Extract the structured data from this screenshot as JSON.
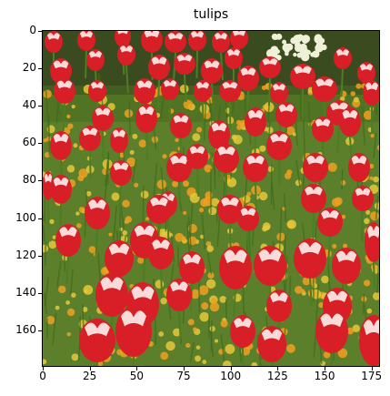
{
  "title": "tulips",
  "axes": {
    "xticks": [
      "0",
      "25",
      "50",
      "75",
      "100",
      "125",
      "150",
      "175"
    ],
    "yticks": [
      "0",
      "20",
      "40",
      "60",
      "80",
      "100",
      "120",
      "140",
      "160"
    ]
  },
  "image": {
    "subject": "field of red and white tulips with orange and yellow flowers",
    "colors": {
      "tulip_red": "#d81e26",
      "tulip_white": "#fbe7e4",
      "foliage": "#5b7f2a",
      "orange_flowers": "#f0a020",
      "yellow_flowers": "#e8c83a",
      "dark_background": "#2f3a1e"
    }
  }
}
